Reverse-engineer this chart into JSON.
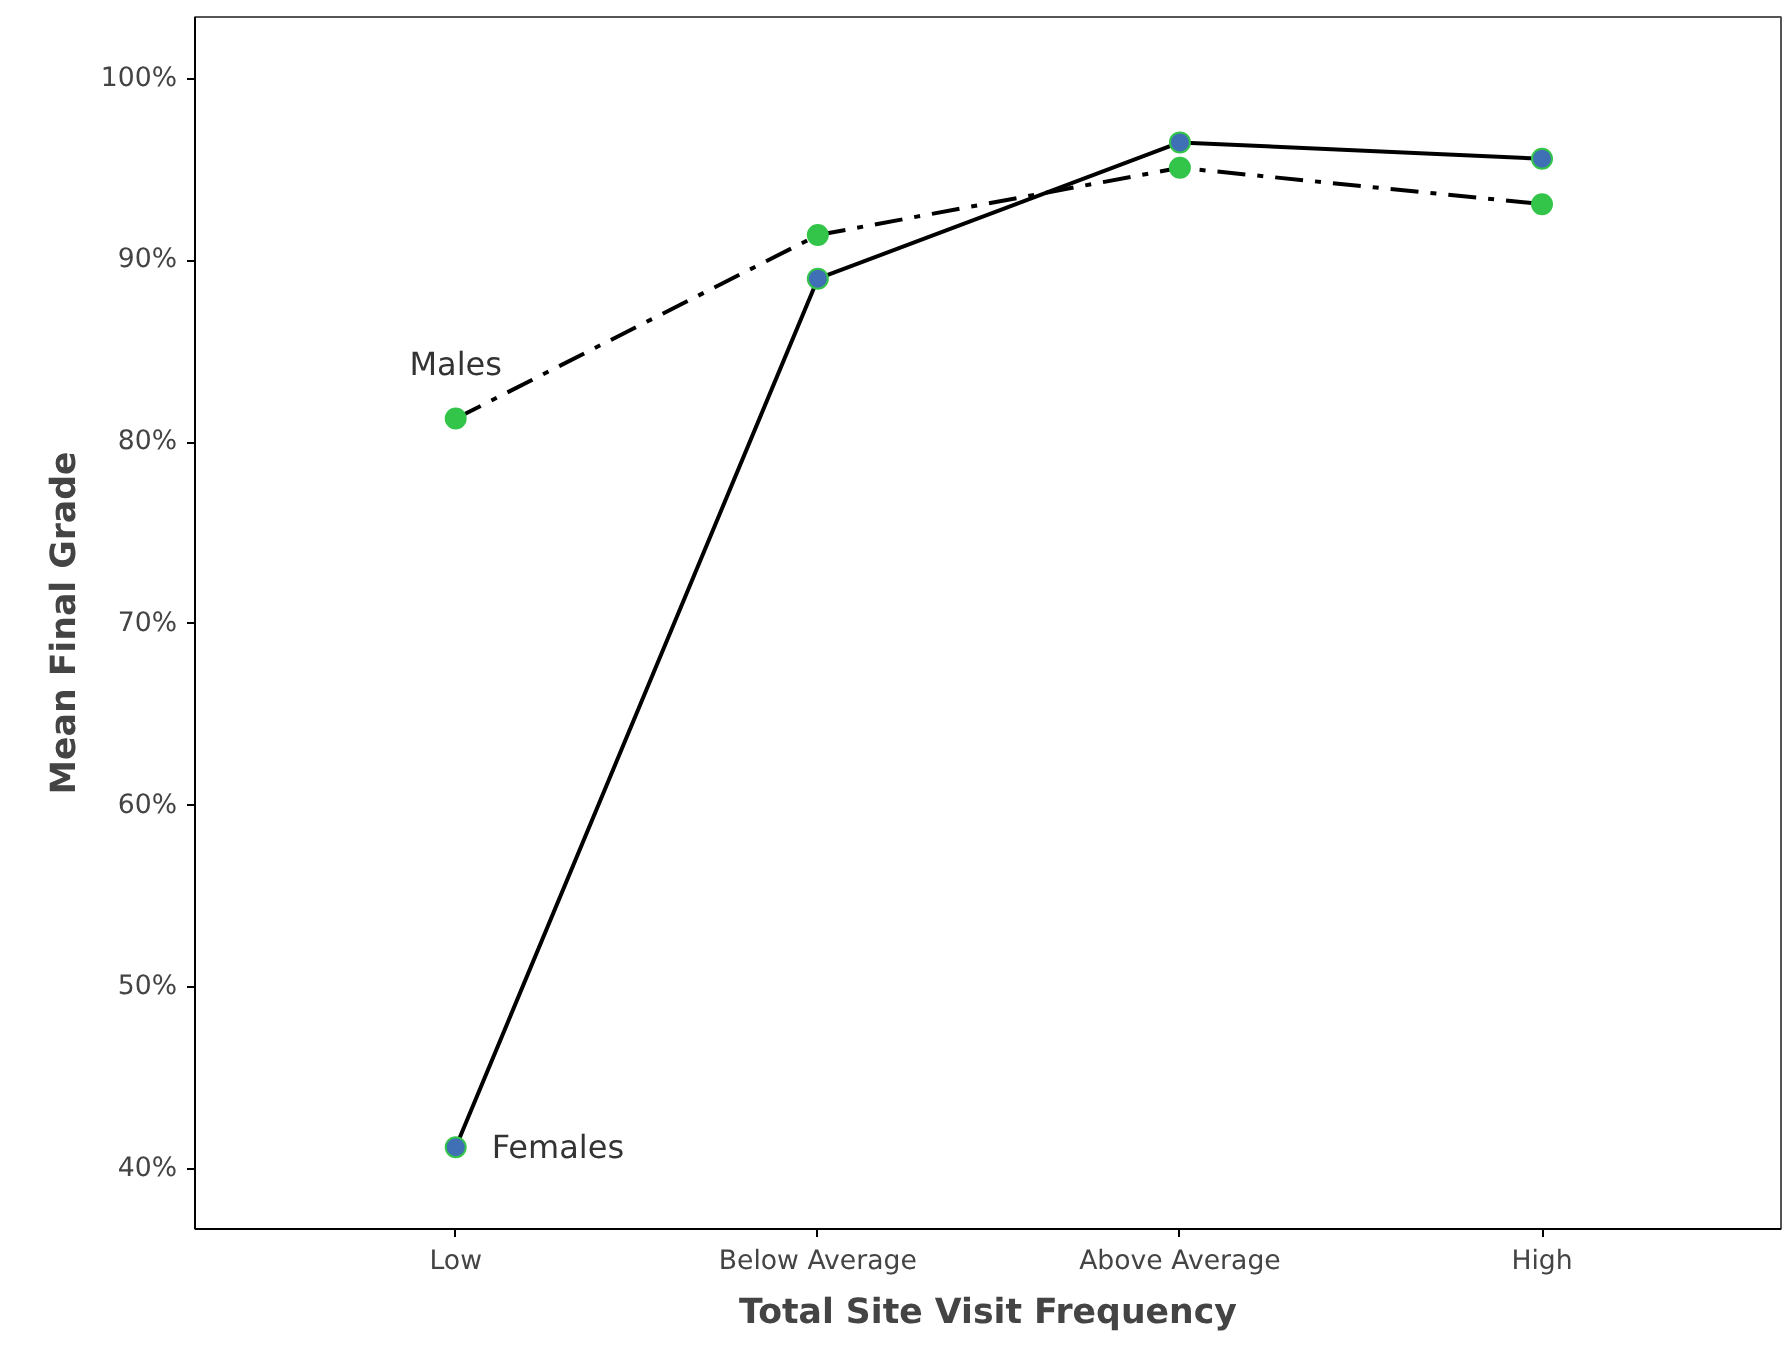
{
  "chart_data": {
    "type": "line",
    "xlabel": "Total Site Visit Frequency",
    "ylabel": "Mean Final Grade",
    "categories": [
      "Low",
      "Below Average",
      "Above Average",
      "High"
    ],
    "series": [
      {
        "name": "Females",
        "color": "#3f6fb5",
        "values": [
          41.2,
          89.0,
          96.5,
          95.6
        ],
        "line_style": "solid"
      },
      {
        "name": "Males",
        "color": "#33c44a",
        "values": [
          81.3,
          91.4,
          95.1,
          93.1
        ],
        "line_style": "dashdot"
      }
    ],
    "ylim": [
      36.7,
      103.4
    ],
    "yticks": [
      {
        "value": 40,
        "label": "40%"
      },
      {
        "value": 50,
        "label": "50%"
      },
      {
        "value": 60,
        "label": "60%"
      },
      {
        "value": 70,
        "label": "70%"
      },
      {
        "value": 80,
        "label": "80%"
      },
      {
        "value": 90,
        "label": "90%"
      },
      {
        "value": 100,
        "label": "100%"
      }
    ],
    "grid": false,
    "marker": "circle"
  }
}
